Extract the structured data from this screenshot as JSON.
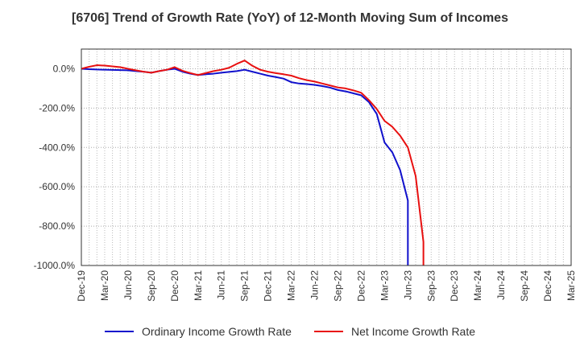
{
  "title": "[6706]  Trend of Growth Rate (YoY) of 12-Month Moving Sum of Incomes",
  "chart_data": {
    "type": "line",
    "title": "[6706]  Trend of Growth Rate (YoY) of 12-Month Moving Sum of Incomes",
    "xlabel": "",
    "ylabel": "",
    "ylim": [
      -1000,
      100
    ],
    "yticks": [
      0,
      -200,
      -400,
      -600,
      -800,
      -1000
    ],
    "ytick_labels": [
      "0.0%",
      "-200.0%",
      "-400.0%",
      "-600.0%",
      "-800.0%",
      "-1000.0%"
    ],
    "categories": [
      "Dec-19",
      "Mar-20",
      "Jun-20",
      "Sep-20",
      "Dec-20",
      "Mar-21",
      "Jun-21",
      "Sep-21",
      "Dec-21",
      "Mar-22",
      "Jun-22",
      "Sep-22",
      "Dec-22",
      "Mar-23",
      "Jun-23",
      "Sep-23",
      "Dec-23",
      "Mar-24",
      "Jun-24",
      "Sep-24",
      "Dec-24",
      "Mar-25"
    ],
    "grid": true,
    "legend_position": "bottom",
    "series": [
      {
        "name": "Ordinary Income Growth Rate",
        "color": "#1010cc",
        "points": [
          [
            "2019-12",
            0
          ],
          [
            "2020-01",
            -2
          ],
          [
            "2020-02",
            -4
          ],
          [
            "2020-03",
            -5
          ],
          [
            "2020-04",
            -6
          ],
          [
            "2020-05",
            -7
          ],
          [
            "2020-06",
            -8
          ],
          [
            "2020-07",
            -12
          ],
          [
            "2020-08",
            -15
          ],
          [
            "2020-09",
            -20
          ],
          [
            "2020-10",
            -12
          ],
          [
            "2020-11",
            -5
          ],
          [
            "2020-12",
            0
          ],
          [
            "2021-01",
            -15
          ],
          [
            "2021-02",
            -25
          ],
          [
            "2021-03",
            -32
          ],
          [
            "2021-04",
            -28
          ],
          [
            "2021-05",
            -25
          ],
          [
            "2021-06",
            -20
          ],
          [
            "2021-07",
            -16
          ],
          [
            "2021-08",
            -12
          ],
          [
            "2021-09",
            -5
          ],
          [
            "2021-10",
            -15
          ],
          [
            "2021-11",
            -25
          ],
          [
            "2021-12",
            -35
          ],
          [
            "2022-01",
            -42
          ],
          [
            "2022-02",
            -50
          ],
          [
            "2022-03",
            -68
          ],
          [
            "2022-04",
            -75
          ],
          [
            "2022-05",
            -78
          ],
          [
            "2022-06",
            -82
          ],
          [
            "2022-07",
            -88
          ],
          [
            "2022-08",
            -96
          ],
          [
            "2022-09",
            -108
          ],
          [
            "2022-10",
            -115
          ],
          [
            "2022-11",
            -125
          ],
          [
            "2022-12",
            -135
          ],
          [
            "2023-01",
            -170
          ],
          [
            "2023-02",
            -230
          ],
          [
            "2023-03",
            -375
          ],
          [
            "2023-04",
            -425
          ],
          [
            "2023-05",
            -515
          ],
          [
            "2023-06",
            -670
          ],
          [
            "2023-06",
            -1000
          ]
        ]
      },
      {
        "name": "Net Income Growth Rate",
        "color": "#e81010",
        "points": [
          [
            "2019-12",
            0
          ],
          [
            "2020-01",
            10
          ],
          [
            "2020-02",
            18
          ],
          [
            "2020-03",
            16
          ],
          [
            "2020-04",
            12
          ],
          [
            "2020-05",
            8
          ],
          [
            "2020-06",
            0
          ],
          [
            "2020-07",
            -8
          ],
          [
            "2020-08",
            -15
          ],
          [
            "2020-09",
            -20
          ],
          [
            "2020-10",
            -12
          ],
          [
            "2020-11",
            -5
          ],
          [
            "2020-12",
            8
          ],
          [
            "2021-01",
            -10
          ],
          [
            "2021-02",
            -22
          ],
          [
            "2021-03",
            -32
          ],
          [
            "2021-04",
            -22
          ],
          [
            "2021-05",
            -12
          ],
          [
            "2021-06",
            -5
          ],
          [
            "2021-07",
            5
          ],
          [
            "2021-08",
            25
          ],
          [
            "2021-09",
            42
          ],
          [
            "2021-10",
            15
          ],
          [
            "2021-11",
            -5
          ],
          [
            "2021-12",
            -15
          ],
          [
            "2022-01",
            -22
          ],
          [
            "2022-02",
            -28
          ],
          [
            "2022-03",
            -35
          ],
          [
            "2022-04",
            -48
          ],
          [
            "2022-05",
            -58
          ],
          [
            "2022-06",
            -65
          ],
          [
            "2022-07",
            -75
          ],
          [
            "2022-08",
            -85
          ],
          [
            "2022-09",
            -95
          ],
          [
            "2022-10",
            -100
          ],
          [
            "2022-11",
            -110
          ],
          [
            "2022-12",
            -122
          ],
          [
            "2023-01",
            -160
          ],
          [
            "2023-02",
            -205
          ],
          [
            "2023-03",
            -265
          ],
          [
            "2023-04",
            -295
          ],
          [
            "2023-05",
            -340
          ],
          [
            "2023-06",
            -400
          ],
          [
            "2023-07",
            -545
          ],
          [
            "2023-08",
            -880
          ],
          [
            "2023-08",
            -1000
          ]
        ]
      }
    ]
  }
}
